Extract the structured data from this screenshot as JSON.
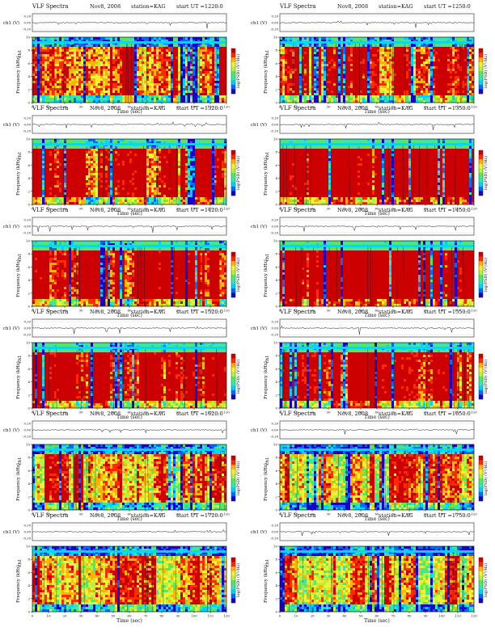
{
  "page": {
    "title": "VLF Spectra",
    "date": "Nov8, 2008",
    "station": "station=KAG",
    "start_label": "start UT ="
  },
  "colors": {
    "scale": [
      "#1a00c8",
      "#006cff",
      "#00d2ff",
      "#37e6b0",
      "#58e85a",
      "#b8f23a",
      "#f2f23a",
      "#ffb400",
      "#ff2a00",
      "#cc0000"
    ],
    "trace": "#222222",
    "noise_band": "#00d8ff",
    "dark_trace": "#0a1a30"
  },
  "chart_data": [
    {
      "type": "heatmap",
      "title": "VLF Spectra",
      "date": "Nov8, 2008",
      "station": "station=KAG",
      "start_ut": "1220:0",
      "ylabel": "Frequency (kHz)",
      "ch_label": "ch1 (V)",
      "colorbar_label": "log(PSD) (V²/Hz)",
      "xlabel": "Time (sec)",
      "xlim": [
        0,
        120
      ],
      "ylim": [
        0,
        10
      ],
      "xticks": [
        0,
        10,
        20,
        30,
        40,
        50,
        60,
        70,
        80,
        90,
        100,
        110,
        120
      ],
      "yticks": [
        0,
        2,
        4,
        6,
        8,
        10
      ],
      "ch_ticks": [
        "0.20",
        "0.00",
        "-0.20"
      ],
      "activity": 0.55
    },
    {
      "type": "heatmap",
      "title": "VLF Spectra",
      "date": "Nov8, 2008",
      "station": "station=KAG",
      "start_ut": "1250:0",
      "ylabel": "Frequency (kHz)",
      "ch_label": "ch1 (V)",
      "colorbar_label": "log(PSD) (V²/Hz)",
      "xlabel": "Time (sec)",
      "xlim": [
        0,
        120
      ],
      "ylim": [
        0,
        10
      ],
      "xticks": [
        0,
        10,
        20,
        30,
        40,
        50,
        60,
        70,
        80,
        90,
        100,
        110,
        120
      ],
      "yticks": [
        0,
        2,
        4,
        6,
        8,
        10
      ],
      "ch_ticks": [
        "0.20",
        "0.00",
        "-0.20"
      ],
      "activity": 0.5
    },
    {
      "type": "heatmap",
      "title": "VLF Spectra",
      "date": "Nov8, 2008",
      "station": "station=KAG",
      "start_ut": "1320:0",
      "ylabel": "Frequency (kHz)",
      "ch_label": "ch1 (V)",
      "colorbar_label": "log(PSD) (V²/Hz)",
      "xlabel": "Time (sec)",
      "xlim": [
        0,
        120
      ],
      "ylim": [
        0,
        10
      ],
      "xticks": [
        0,
        10,
        20,
        30,
        40,
        50,
        60,
        70,
        80,
        90,
        100,
        110,
        120
      ],
      "yticks": [
        0,
        2,
        4,
        6,
        8,
        10
      ],
      "ch_ticks": [
        "0.20",
        "0.00",
        "-0.20"
      ],
      "activity": 0.62
    },
    {
      "type": "heatmap",
      "title": "VLF Spectra",
      "date": "Nov8, 2008",
      "station": "station=KAG",
      "start_ut": "1350:0",
      "ylabel": "Frequency (kHz)",
      "ch_label": "ch1 (V)",
      "colorbar_label": "log(PSD) (V²/Hz)",
      "xlabel": "Time (sec)",
      "xlim": [
        0,
        120
      ],
      "ylim": [
        0,
        10
      ],
      "xticks": [
        0,
        10,
        20,
        30,
        40,
        50,
        60,
        70,
        80,
        90,
        100,
        110,
        120
      ],
      "yticks": [
        0,
        2,
        4,
        6,
        8,
        10
      ],
      "ch_ticks": [
        "0.20",
        "0.00",
        "-0.20"
      ],
      "activity": 0.8
    },
    {
      "type": "heatmap",
      "title": "VLF Spectra",
      "date": "Nov8, 2008",
      "station": "station=KAG",
      "start_ut": "1420:0",
      "ylabel": "Frequency (kHz)",
      "ch_label": "ch1 (V)",
      "colorbar_label": "log(PSD) (V²/Hz)",
      "xlabel": "Time (sec)",
      "xlim": [
        0,
        120
      ],
      "ylim": [
        0,
        10
      ],
      "xticks": [
        0,
        10,
        20,
        30,
        40,
        50,
        60,
        70,
        80,
        90,
        100,
        110,
        120
      ],
      "yticks": [
        0,
        2,
        4,
        6,
        8,
        10
      ],
      "ch_ticks": [
        "0.20",
        "0.00",
        "-0.20"
      ],
      "activity": 0.72
    },
    {
      "type": "heatmap",
      "title": "VLF Spectra",
      "date": "Nov8, 2008",
      "station": "station=KAG",
      "start_ut": "1450:0",
      "ylabel": "Frequency (kHz)",
      "ch_label": "ch1 (V)",
      "colorbar_label": "log(PSD) (V²/Hz)",
      "xlabel": "Time (sec)",
      "xlim": [
        0,
        120
      ],
      "ylim": [
        0,
        10
      ],
      "xticks": [
        0,
        10,
        20,
        30,
        40,
        50,
        60,
        70,
        80,
        90,
        100,
        110,
        120
      ],
      "yticks": [
        0,
        2,
        4,
        6,
        8,
        10
      ],
      "ch_ticks": [
        "0.20",
        "0.00",
        "-0.20"
      ],
      "activity": 0.88
    },
    {
      "type": "heatmap",
      "title": "VLF Spectra",
      "date": "Nov8, 2008",
      "station": "station=KAG",
      "start_ut": "1520:0",
      "ylabel": "Frequency (kHz)",
      "ch_label": "ch1 (V)",
      "colorbar_label": "log(PSD) (V²/Hz)",
      "xlabel": "Time (sec)",
      "xlim": [
        0,
        120
      ],
      "ylim": [
        0,
        10
      ],
      "xticks": [
        0,
        10,
        20,
        30,
        40,
        50,
        60,
        70,
        80,
        90,
        100,
        110,
        120
      ],
      "yticks": [
        0,
        2,
        4,
        6,
        8,
        10
      ],
      "ch_ticks": [
        "0.20",
        "0.00",
        "-0.20"
      ],
      "activity": 0.75
    },
    {
      "type": "heatmap",
      "title": "VLF Spectra",
      "date": "Nov8, 2008",
      "station": "station=KAG",
      "start_ut": "1550:0",
      "ylabel": "Frequency (kHz)",
      "ch_label": "ch1 (V)",
      "colorbar_label": "log(PSD) (V²/Hz)",
      "xlabel": "Time (sec)",
      "xlim": [
        0,
        120
      ],
      "ylim": [
        0,
        10
      ],
      "xticks": [
        0,
        10,
        20,
        30,
        40,
        50,
        60,
        70,
        80,
        90,
        100,
        110,
        120
      ],
      "yticks": [
        0,
        2,
        4,
        6,
        8,
        10
      ],
      "ch_ticks": [
        "0.20",
        "0.00",
        "-0.20"
      ],
      "activity": 0.7
    },
    {
      "type": "heatmap",
      "title": "VLF Spectra",
      "date": "Nov8, 2008",
      "station": "station=KAG",
      "start_ut": "1620:0",
      "ylabel": "Frequency (kHz)",
      "ch_label": "ch1 (V)",
      "colorbar_label": "log(PSD) (V²/Hz)",
      "xlabel": "Time (sec)",
      "xlim": [
        0,
        120
      ],
      "ylim": [
        0,
        10
      ],
      "xticks": [
        0,
        10,
        20,
        30,
        40,
        50,
        60,
        70,
        80,
        90,
        100,
        110,
        120
      ],
      "yticks": [
        0,
        2,
        4,
        6,
        8,
        10
      ],
      "ch_ticks": [
        "0.20",
        "0.00",
        "-0.20"
      ],
      "activity": 0.42
    },
    {
      "type": "heatmap",
      "title": "VLF Spectra",
      "date": "Nov8, 2008",
      "station": "station=KAG",
      "start_ut": "1650:0",
      "ylabel": "Frequency (kHz)",
      "ch_label": "ch1 (V)",
      "colorbar_label": "log(PSD) (V²/Hz)",
      "xlabel": "Time (sec)",
      "xlim": [
        0,
        120
      ],
      "ylim": [
        0,
        10
      ],
      "xticks": [
        0,
        10,
        20,
        30,
        40,
        50,
        60,
        70,
        80,
        90,
        100,
        110,
        120
      ],
      "yticks": [
        0,
        2,
        4,
        6,
        8,
        10
      ],
      "ch_ticks": [
        "0.20",
        "0.00",
        "-0.20"
      ],
      "activity": 0.38
    },
    {
      "type": "heatmap",
      "title": "VLF Spectra",
      "date": "Nov8, 2008",
      "station": "station=KAG",
      "start_ut": "1720:0",
      "ylabel": "Frequency (kHz)",
      "ch_label": "ch1 (V)",
      "colorbar_label": "log(PSD) (V²/Hz)",
      "xlabel": "Time (sec)",
      "xlim": [
        0,
        120
      ],
      "ylim": [
        0,
        10
      ],
      "xticks": [
        0,
        10,
        20,
        30,
        40,
        50,
        60,
        70,
        80,
        90,
        100,
        110,
        120
      ],
      "yticks": [
        0,
        2,
        4,
        6,
        8,
        10
      ],
      "ch_ticks": [
        "0.20",
        "0.00",
        "-0.20"
      ],
      "activity": 0.36
    },
    {
      "type": "heatmap",
      "title": "VLF Spectra",
      "date": "Nov8, 2008",
      "station": "station=KAG",
      "start_ut": "1750:0",
      "ylabel": "Frequency (kHz)",
      "ch_label": "ch1 (V)",
      "colorbar_label": "log(PSD) (V²/Hz)",
      "xlabel": "Time (sec)",
      "xlim": [
        0,
        120
      ],
      "ylim": [
        0,
        10
      ],
      "xticks": [
        0,
        10,
        20,
        30,
        40,
        50,
        60,
        70,
        80,
        90,
        100,
        110,
        120
      ],
      "yticks": [
        0,
        2,
        4,
        6,
        8,
        10
      ],
      "ch_ticks": [
        "0.20",
        "0.00",
        "-0.20"
      ],
      "activity": 0.3
    }
  ]
}
